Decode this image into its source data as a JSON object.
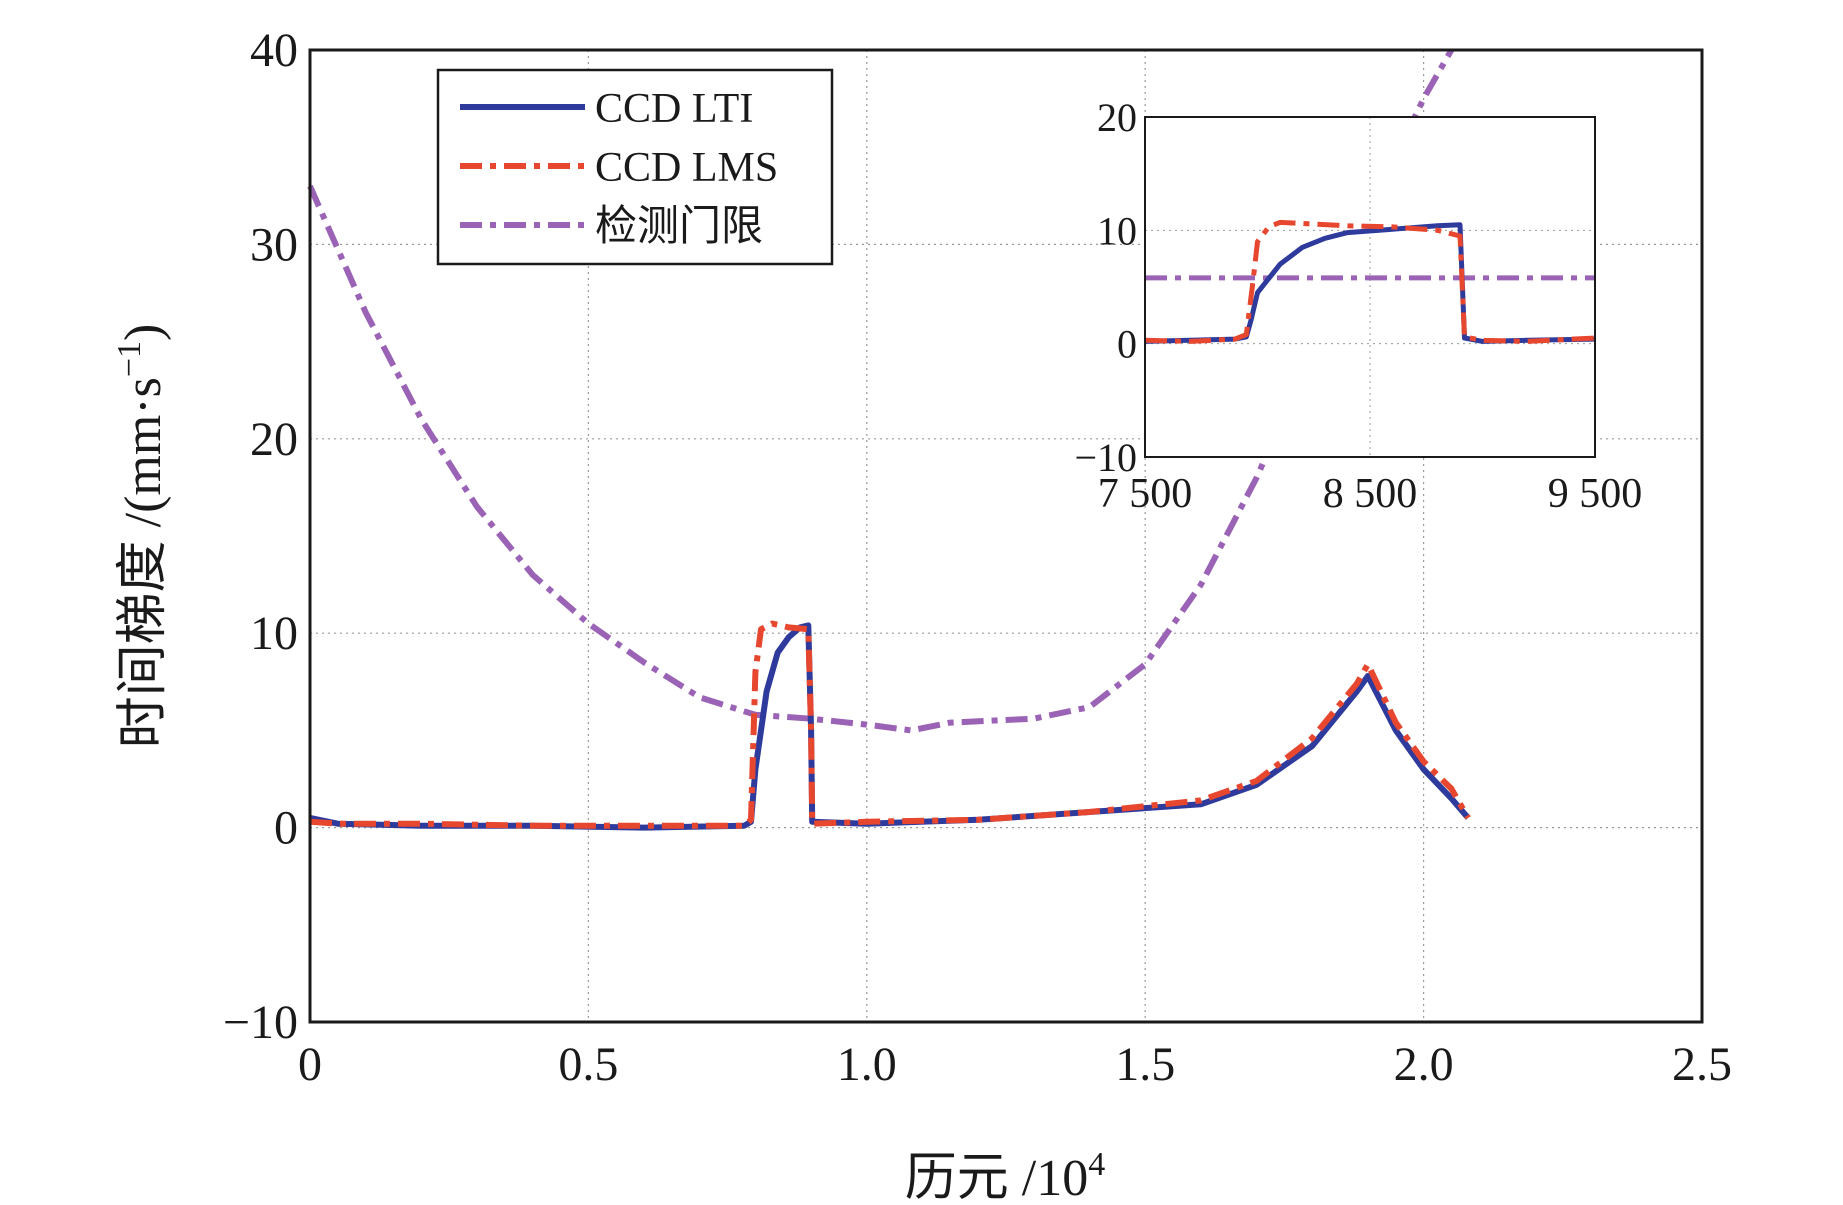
{
  "chart_data": {
    "type": "line",
    "title": "",
    "xlabel": "历元 /10",
    "xlabel_exponent": "4",
    "ylabel": "时间梯度 /(mm·s",
    "ylabel_exponent": "−1",
    "ylabel_close": ")",
    "xlim": [
      0,
      2.5
    ],
    "ylim": [
      -10,
      40
    ],
    "xticks": [
      0,
      0.5,
      1.0,
      1.5,
      2.0,
      2.5
    ],
    "xtick_labels": [
      "0",
      "0.5",
      "1.0",
      "1.5",
      "2.0",
      "2.5"
    ],
    "yticks": [
      -10,
      0,
      10,
      20,
      30,
      40
    ],
    "ytick_labels": [
      "−10",
      "0",
      "10",
      "20",
      "30",
      "40"
    ],
    "grid": true,
    "legend_position": "top-left",
    "series": [
      {
        "name": "CCD LTI",
        "color": "#2e3a9c",
        "style": "solid",
        "points": [
          [
            0,
            0.5
          ],
          [
            0.05,
            0.2
          ],
          [
            0.2,
            0.1
          ],
          [
            0.4,
            0.1
          ],
          [
            0.6,
            0.0
          ],
          [
            0.78,
            0.1
          ],
          [
            0.792,
            0.3
          ],
          [
            0.8,
            3.0
          ],
          [
            0.82,
            7.0
          ],
          [
            0.84,
            9.0
          ],
          [
            0.86,
            9.8
          ],
          [
            0.88,
            10.3
          ],
          [
            0.895,
            10.4
          ],
          [
            0.9,
            5.0
          ],
          [
            0.902,
            0.3
          ],
          [
            1.0,
            0.2
          ],
          [
            1.2,
            0.4
          ],
          [
            1.4,
            0.8
          ],
          [
            1.6,
            1.2
          ],
          [
            1.7,
            2.2
          ],
          [
            1.8,
            4.2
          ],
          [
            1.88,
            7.0
          ],
          [
            1.9,
            7.8
          ],
          [
            1.95,
            5.0
          ],
          [
            2.0,
            3.0
          ],
          [
            2.05,
            1.5
          ],
          [
            2.08,
            0.5
          ]
        ]
      },
      {
        "name": "CCD LMS",
        "color": "#e8472f",
        "style": "dashdot",
        "points": [
          [
            0,
            0.3
          ],
          [
            0.05,
            0.2
          ],
          [
            0.2,
            0.2
          ],
          [
            0.4,
            0.1
          ],
          [
            0.6,
            0.1
          ],
          [
            0.78,
            0.1
          ],
          [
            0.792,
            0.4
          ],
          [
            0.8,
            8.0
          ],
          [
            0.81,
            10.2
          ],
          [
            0.83,
            10.5
          ],
          [
            0.86,
            10.3
          ],
          [
            0.895,
            10.2
          ],
          [
            0.9,
            5.0
          ],
          [
            0.902,
            0.2
          ],
          [
            1.0,
            0.3
          ],
          [
            1.2,
            0.4
          ],
          [
            1.4,
            0.8
          ],
          [
            1.6,
            1.4
          ],
          [
            1.7,
            2.4
          ],
          [
            1.8,
            4.6
          ],
          [
            1.88,
            7.4
          ],
          [
            1.9,
            8.4
          ],
          [
            1.95,
            5.4
          ],
          [
            2.0,
            3.4
          ],
          [
            2.05,
            2.0
          ],
          [
            2.08,
            0.5
          ]
        ]
      },
      {
        "name": "检测门限",
        "color": "#9b63b5",
        "style": "dashdot",
        "points": [
          [
            0,
            33.0
          ],
          [
            0.1,
            26.5
          ],
          [
            0.2,
            21.0
          ],
          [
            0.3,
            16.5
          ],
          [
            0.4,
            13.0
          ],
          [
            0.5,
            10.5
          ],
          [
            0.6,
            8.5
          ],
          [
            0.7,
            6.7
          ],
          [
            0.8,
            5.8
          ],
          [
            0.9,
            5.6
          ],
          [
            1.0,
            5.3
          ],
          [
            1.08,
            5.0
          ],
          [
            1.15,
            5.4
          ],
          [
            1.3,
            5.6
          ],
          [
            1.4,
            6.2
          ],
          [
            1.5,
            8.4
          ],
          [
            1.6,
            12.5
          ],
          [
            1.7,
            18.0
          ],
          [
            1.8,
            24.5
          ],
          [
            1.9,
            31.5
          ],
          [
            2.0,
            37.5
          ],
          [
            2.05,
            40.0
          ]
        ]
      }
    ],
    "inset": {
      "xlim": [
        7500,
        9500
      ],
      "ylim": [
        -10,
        20
      ],
      "xticks": [
        7500,
        8500,
        9500
      ],
      "xtick_labels": [
        "7 500",
        "8 500",
        "9 500"
      ],
      "yticks": [
        -10,
        0,
        10,
        20
      ],
      "ytick_labels": [
        "−10",
        "0",
        "10",
        "20"
      ],
      "series": [
        {
          "name": "CCD LTI",
          "points": [
            [
              7500,
              0.2
            ],
            [
              7700,
              0.3
            ],
            [
              7900,
              0.4
            ],
            [
              7950,
              0.6
            ],
            [
              7970,
              2.0
            ],
            [
              8000,
              4.5
            ],
            [
              8100,
              7.0
            ],
            [
              8200,
              8.5
            ],
            [
              8300,
              9.3
            ],
            [
              8400,
              9.8
            ],
            [
              8600,
              10.1
            ],
            [
              8800,
              10.4
            ],
            [
              8900,
              10.5
            ],
            [
              8920,
              0.5
            ],
            [
              9000,
              0.2
            ],
            [
              9200,
              0.3
            ],
            [
              9500,
              0.4
            ]
          ]
        },
        {
          "name": "CCD LMS",
          "points": [
            [
              7500,
              0.3
            ],
            [
              7700,
              0.2
            ],
            [
              7900,
              0.4
            ],
            [
              7950,
              0.8
            ],
            [
              7980,
              5.5
            ],
            [
              8000,
              9.0
            ],
            [
              8050,
              10.3
            ],
            [
              8100,
              10.7
            ],
            [
              8200,
              10.6
            ],
            [
              8400,
              10.4
            ],
            [
              8600,
              10.3
            ],
            [
              8800,
              10.0
            ],
            [
              8900,
              9.5
            ],
            [
              8920,
              0.6
            ],
            [
              9000,
              0.3
            ],
            [
              9200,
              0.2
            ],
            [
              9500,
              0.5
            ]
          ]
        },
        {
          "name": "检测门限",
          "points": [
            [
              7500,
              5.8
            ],
            [
              9500,
              5.8
            ]
          ]
        }
      ]
    }
  }
}
